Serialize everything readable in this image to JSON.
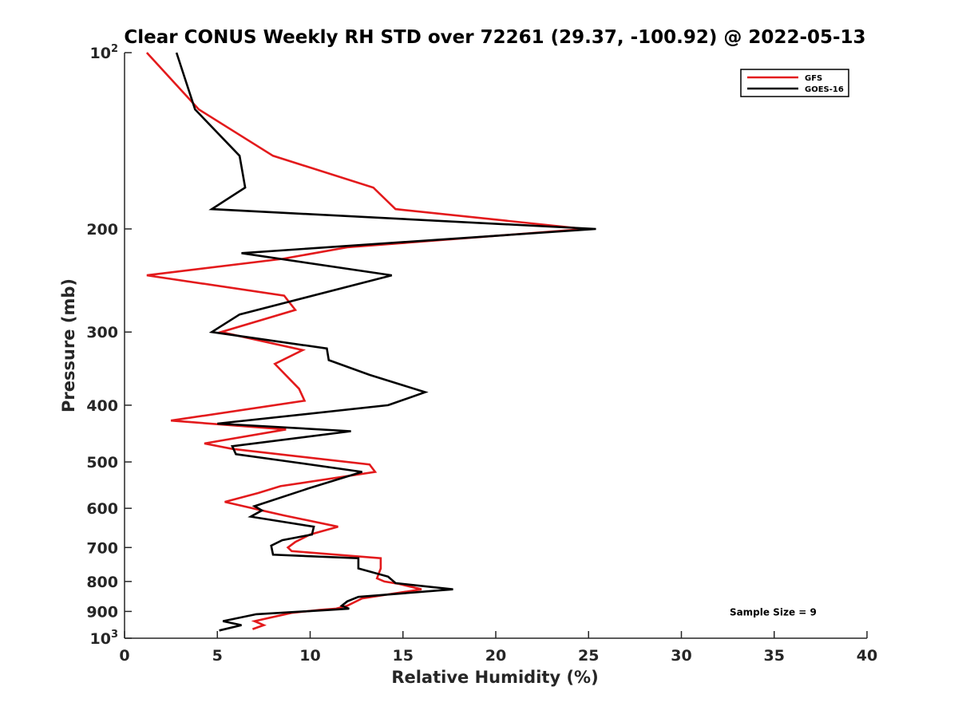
{
  "chart_data": {
    "type": "line",
    "title": "Clear CONUS Weekly RH STD over 72261 (29.37, -100.92) @ 2022-05-13",
    "xlabel": "Relative Humidity (%)",
    "ylabel": "Pressure (mb)",
    "xlim": [
      0,
      40
    ],
    "ylim": [
      100,
      1000
    ],
    "y_scale": "log",
    "y_reversed": true,
    "grid": false,
    "legend_position": "top-right",
    "x_ticks": [
      0,
      5,
      10,
      15,
      20,
      25,
      30,
      35,
      40
    ],
    "y_ticks": [
      {
        "value": 100,
        "base": "10",
        "exp": "2"
      },
      {
        "value": 200,
        "label": "200"
      },
      {
        "value": 300,
        "label": "300"
      },
      {
        "value": 400,
        "label": "400"
      },
      {
        "value": 500,
        "label": "500"
      },
      {
        "value": 600,
        "label": "600"
      },
      {
        "value": 700,
        "label": "700"
      },
      {
        "value": 800,
        "label": "800"
      },
      {
        "value": 900,
        "label": "900"
      },
      {
        "value": 1000,
        "base": "10",
        "exp": "3"
      }
    ],
    "series": [
      {
        "name": "GFS",
        "color": "#e31a1c",
        "points": [
          [
            1.2,
            100
          ],
          [
            4.0,
            125
          ],
          [
            8.0,
            150
          ],
          [
            13.4,
            170
          ],
          [
            14.6,
            185
          ],
          [
            24.8,
            200
          ],
          [
            12.0,
            215
          ],
          [
            8.5,
            225
          ],
          [
            1.2,
            240
          ],
          [
            8.6,
            260
          ],
          [
            9.2,
            275
          ],
          [
            5.2,
            300
          ],
          [
            9.6,
            322
          ],
          [
            8.1,
            340
          ],
          [
            9.4,
            375
          ],
          [
            9.7,
            393
          ],
          [
            2.5,
            425
          ],
          [
            8.7,
            440
          ],
          [
            4.3,
            465
          ],
          [
            5.8,
            475
          ],
          [
            13.2,
            505
          ],
          [
            13.5,
            520
          ],
          [
            8.4,
            550
          ],
          [
            7.2,
            565
          ],
          [
            5.4,
            585
          ],
          [
            7.4,
            605
          ],
          [
            8.6,
            617
          ],
          [
            11.5,
            645
          ],
          [
            10.0,
            665
          ],
          [
            9.2,
            685
          ],
          [
            8.8,
            700
          ],
          [
            9.0,
            710
          ],
          [
            13.8,
            730
          ],
          [
            13.8,
            760
          ],
          [
            13.6,
            790
          ],
          [
            14.0,
            800
          ],
          [
            14.8,
            808
          ],
          [
            16.0,
            825
          ],
          [
            12.8,
            855
          ],
          [
            12.0,
            880
          ],
          [
            11.4,
            890
          ],
          [
            10.5,
            895
          ],
          [
            9.0,
            905
          ],
          [
            7.0,
            935
          ],
          [
            7.5,
            950
          ],
          [
            6.9,
            965
          ]
        ]
      },
      {
        "name": "GOES-16",
        "color": "#000000",
        "points": [
          [
            2.8,
            100
          ],
          [
            3.8,
            125
          ],
          [
            6.2,
            150
          ],
          [
            6.5,
            170
          ],
          [
            4.7,
            185
          ],
          [
            25.4,
            200
          ],
          [
            6.3,
            220
          ],
          [
            14.4,
            240
          ],
          [
            6.2,
            280
          ],
          [
            4.7,
            300
          ],
          [
            10.9,
            320
          ],
          [
            11.0,
            335
          ],
          [
            13.2,
            355
          ],
          [
            16.2,
            380
          ],
          [
            14.2,
            400
          ],
          [
            5.0,
            430
          ],
          [
            12.2,
            443
          ],
          [
            5.8,
            470
          ],
          [
            6.0,
            485
          ],
          [
            9.0,
            500
          ],
          [
            12.8,
            520
          ],
          [
            9.9,
            555
          ],
          [
            7.0,
            595
          ],
          [
            7.4,
            605
          ],
          [
            6.8,
            620
          ],
          [
            10.2,
            645
          ],
          [
            10.1,
            665
          ],
          [
            8.5,
            680
          ],
          [
            7.9,
            695
          ],
          [
            8.0,
            720
          ],
          [
            12.6,
            730
          ],
          [
            12.6,
            760
          ],
          [
            14.2,
            785
          ],
          [
            14.6,
            805
          ],
          [
            17.7,
            825
          ],
          [
            12.6,
            850
          ],
          [
            12.0,
            865
          ],
          [
            11.7,
            880
          ],
          [
            12.1,
            890
          ],
          [
            11.0,
            895
          ],
          [
            7.1,
            910
          ],
          [
            5.3,
            935
          ],
          [
            6.3,
            950
          ],
          [
            5.1,
            970
          ]
        ]
      }
    ],
    "annotations": [
      {
        "text": "Sample Size = 9",
        "x": 32.6,
        "y": 900
      }
    ]
  }
}
